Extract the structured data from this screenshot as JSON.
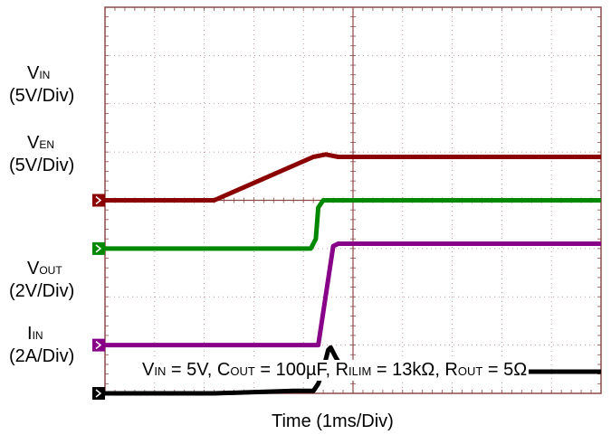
{
  "chart_data": {
    "type": "line",
    "x_axis": {
      "label": "Time  (1ms/Div)",
      "divisions": 10
    },
    "y_divisions": 8,
    "grid": true,
    "series": [
      {
        "name": "V",
        "name_sub": "IN",
        "scale": "(5V/Div)",
        "color": "#8b0000",
        "points": [
          [
            0,
            4.0
          ],
          [
            2.2,
            4.0
          ],
          [
            4.2,
            4.9
          ],
          [
            4.45,
            4.95
          ],
          [
            4.7,
            4.9
          ],
          [
            10,
            4.9
          ]
        ]
      },
      {
        "name": "V",
        "name_sub": "EN",
        "scale": "(5V/Div)",
        "color": "#008800",
        "points": [
          [
            0,
            3.0
          ],
          [
            4.15,
            3.0
          ],
          [
            4.25,
            3.2
          ],
          [
            4.3,
            3.85
          ],
          [
            4.4,
            4.0
          ],
          [
            10,
            4.0
          ]
        ]
      },
      {
        "name": "V",
        "name_sub": "OUT",
        "scale": "(2V/Div)",
        "color": "#880088",
        "points": [
          [
            0,
            1.0
          ],
          [
            4.3,
            1.0
          ],
          [
            4.6,
            3.05
          ],
          [
            4.7,
            3.1
          ],
          [
            10,
            3.1
          ]
        ]
      },
      {
        "name": "I",
        "name_sub": "IN",
        "scale": "(2A/Div)",
        "color": "#000000",
        "points": [
          [
            0,
            0.0
          ],
          [
            2.2,
            0.0
          ],
          [
            3.8,
            0.05
          ],
          [
            4.2,
            0.05
          ],
          [
            4.3,
            0.2
          ],
          [
            4.4,
            0.5
          ],
          [
            4.5,
            0.9
          ],
          [
            4.55,
            0.95
          ],
          [
            4.65,
            0.75
          ],
          [
            4.8,
            0.5
          ],
          [
            5.2,
            0.45
          ],
          [
            10,
            0.45
          ]
        ]
      }
    ],
    "annotation": {
      "parts": [
        {
          "t": "V"
        },
        {
          "t": "IN",
          "sub": true
        },
        {
          "t": " = 5V, C"
        },
        {
          "t": "OUT",
          "sub": true
        },
        {
          "t": " = 100µF, R"
        },
        {
          "t": "ILIM",
          "sub": true
        },
        {
          "t": " = 13kΩ, R"
        },
        {
          "t": "OUT",
          "sub": true
        },
        {
          "t": " = 5Ω"
        }
      ]
    }
  }
}
